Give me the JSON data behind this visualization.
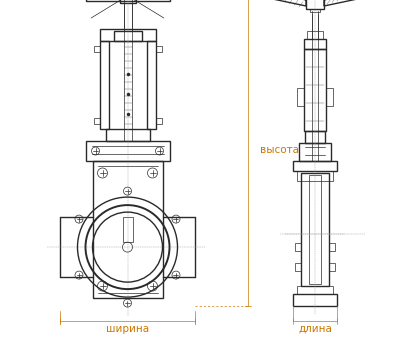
{
  "bg_color": "#ffffff",
  "line_color": "#2a2a2a",
  "dim_color": "#cc7700",
  "label_ширина": "ширина",
  "label_длина": "длина",
  "label_высота": "высота",
  "label_font_size": 7.5,
  "fig_width": 4.0,
  "fig_height": 3.46,
  "dpi": 100
}
